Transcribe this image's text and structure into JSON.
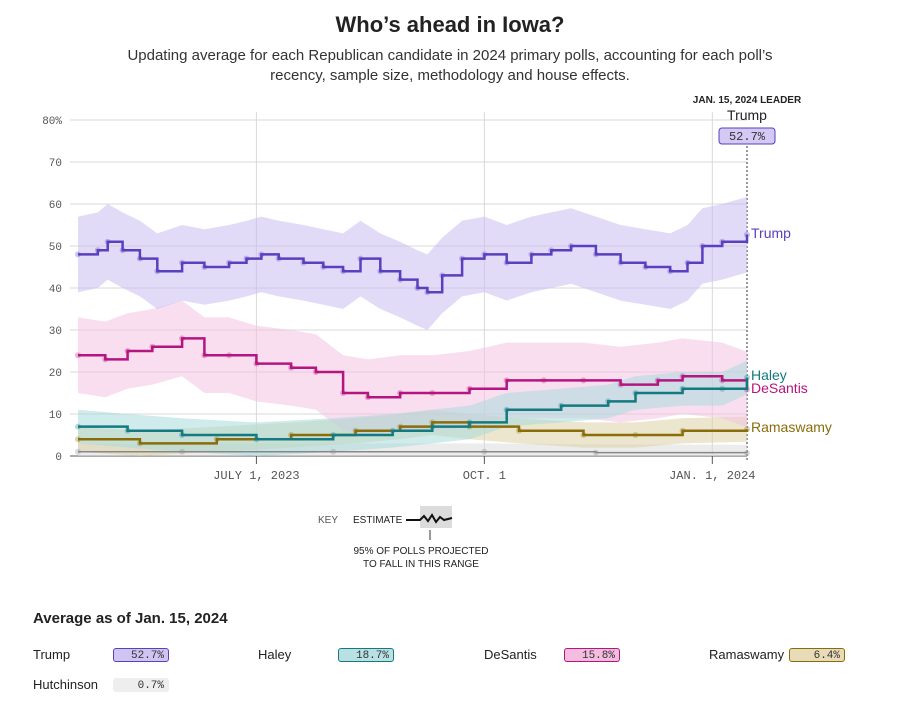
{
  "title": "Who’s ahead in Iowa?",
  "subtitle": "Updating average for each Republican candidate in 2024 primary polls, accounting for each poll’s recency, sample size, methodology and house effects.",
  "leader_box": {
    "heading": "JAN. 15, 2024 LEADER",
    "name": "Trump",
    "value": "52.7%"
  },
  "key": {
    "label": "KEY",
    "estimate": "ESTIMATE",
    "range_note_1": "95% OF POLLS PROJECTED",
    "range_note_2": "TO FALL IN THIS RANGE"
  },
  "average": {
    "title": "Average as of Jan. 15, 2024",
    "items": [
      {
        "name": "Trump",
        "value": "52.7%",
        "color": "#cfc4f2",
        "border": "#5a3fbf"
      },
      {
        "name": "Haley",
        "value": "18.7%",
        "color": "#b9e0e2",
        "border": "#137a80"
      },
      {
        "name": "DeSantis",
        "value": "15.8%",
        "color": "#f4bde0",
        "border": "#b5157f"
      },
      {
        "name": "Ramaswamy",
        "value": "6.4%",
        "color": "#e8dcb8",
        "border": "#8a6d0a"
      },
      {
        "name": "Hutchinson",
        "value": "0.7%",
        "color": "#eeeeee",
        "border": "#eeeeee"
      }
    ]
  },
  "chart_data": {
    "type": "line",
    "title": "Who’s ahead in Iowa?",
    "x_ticks": [
      "JULY 1, 2023",
      "OCT. 1",
      "JAN. 1, 2024"
    ],
    "y_ticks": [
      "80%",
      "70",
      "60",
      "50",
      "40",
      "30",
      "20",
      "10",
      "0"
    ],
    "ylim": [
      0,
      80
    ],
    "xlim": [
      "2023-04-20",
      "2024-01-15"
    ],
    "grid": true,
    "series": [
      {
        "name": "Trump",
        "color": "#5a3fbf",
        "band_color": "#cbbdf3",
        "band": 9,
        "points": [
          [
            "2023-04-20",
            48
          ],
          [
            "2023-04-28",
            49
          ],
          [
            "2023-05-02",
            51
          ],
          [
            "2023-05-08",
            49
          ],
          [
            "2023-05-15",
            47
          ],
          [
            "2023-05-22",
            44
          ],
          [
            "2023-06-01",
            46
          ],
          [
            "2023-06-10",
            45
          ],
          [
            "2023-06-20",
            46
          ],
          [
            "2023-06-27",
            47
          ],
          [
            "2023-07-03",
            48
          ],
          [
            "2023-07-10",
            47
          ],
          [
            "2023-07-20",
            46
          ],
          [
            "2023-07-28",
            45
          ],
          [
            "2023-08-05",
            44
          ],
          [
            "2023-08-12",
            47
          ],
          [
            "2023-08-20",
            44
          ],
          [
            "2023-08-28",
            42
          ],
          [
            "2023-09-04",
            40
          ],
          [
            "2023-09-08",
            39
          ],
          [
            "2023-09-14",
            43
          ],
          [
            "2023-09-22",
            47
          ],
          [
            "2023-10-01",
            48
          ],
          [
            "2023-10-10",
            46
          ],
          [
            "2023-10-20",
            48
          ],
          [
            "2023-10-28",
            49
          ],
          [
            "2023-11-05",
            50
          ],
          [
            "2023-11-15",
            48
          ],
          [
            "2023-11-25",
            46
          ],
          [
            "2023-12-05",
            45
          ],
          [
            "2023-12-15",
            44
          ],
          [
            "2023-12-22",
            46
          ],
          [
            "2023-12-28",
            50
          ],
          [
            "2024-01-05",
            51
          ],
          [
            "2024-01-15",
            52.7
          ]
        ]
      },
      {
        "name": "Haley",
        "color": "#137a80",
        "band_color": "#a9dadc",
        "band": 4,
        "points": [
          [
            "2023-04-20",
            7
          ],
          [
            "2023-05-10",
            6
          ],
          [
            "2023-06-01",
            5
          ],
          [
            "2023-07-01",
            4
          ],
          [
            "2023-08-01",
            5
          ],
          [
            "2023-08-25",
            6
          ],
          [
            "2023-09-10",
            7
          ],
          [
            "2023-09-25",
            8
          ],
          [
            "2023-10-10",
            11
          ],
          [
            "2023-11-01",
            12
          ],
          [
            "2023-11-20",
            13
          ],
          [
            "2023-12-01",
            15
          ],
          [
            "2023-12-20",
            16
          ],
          [
            "2024-01-05",
            16
          ],
          [
            "2024-01-15",
            18.7
          ]
        ]
      },
      {
        "name": "DeSantis",
        "color": "#b5157f",
        "band_color": "#f2c2e2",
        "band": 9,
        "points": [
          [
            "2023-04-20",
            24
          ],
          [
            "2023-05-01",
            23
          ],
          [
            "2023-05-10",
            25
          ],
          [
            "2023-05-20",
            26
          ],
          [
            "2023-06-01",
            28
          ],
          [
            "2023-06-10",
            24
          ],
          [
            "2023-06-20",
            24
          ],
          [
            "2023-07-01",
            22
          ],
          [
            "2023-07-15",
            21
          ],
          [
            "2023-07-25",
            20
          ],
          [
            "2023-08-05",
            15
          ],
          [
            "2023-08-15",
            14
          ],
          [
            "2023-08-28",
            15
          ],
          [
            "2023-09-10",
            15
          ],
          [
            "2023-09-25",
            16
          ],
          [
            "2023-10-10",
            18
          ],
          [
            "2023-10-25",
            18
          ],
          [
            "2023-11-10",
            18
          ],
          [
            "2023-11-25",
            17
          ],
          [
            "2023-12-10",
            18
          ],
          [
            "2023-12-20",
            19
          ],
          [
            "2024-01-05",
            18
          ],
          [
            "2024-01-15",
            15.8
          ]
        ]
      },
      {
        "name": "Ramaswamy",
        "color": "#8a6d0a",
        "band_color": "#ddd2a6",
        "band": 3,
        "points": [
          [
            "2023-04-20",
            4
          ],
          [
            "2023-05-15",
            3
          ],
          [
            "2023-06-15",
            4
          ],
          [
            "2023-07-15",
            5
          ],
          [
            "2023-08-10",
            6
          ],
          [
            "2023-08-28",
            7
          ],
          [
            "2023-09-10",
            8
          ],
          [
            "2023-09-25",
            7
          ],
          [
            "2023-10-15",
            6
          ],
          [
            "2023-11-10",
            5
          ],
          [
            "2023-12-01",
            5
          ],
          [
            "2023-12-20",
            6
          ],
          [
            "2024-01-15",
            6.4
          ]
        ]
      },
      {
        "name": "Hutchinson",
        "color": "#888888",
        "band_color": "#dddddd",
        "band": 2,
        "points": [
          [
            "2023-04-20",
            1
          ],
          [
            "2023-06-01",
            1
          ],
          [
            "2023-08-01",
            1
          ],
          [
            "2023-10-01",
            1
          ],
          [
            "2023-11-15",
            0.8
          ],
          [
            "2024-01-15",
            0.7
          ]
        ]
      }
    ]
  }
}
